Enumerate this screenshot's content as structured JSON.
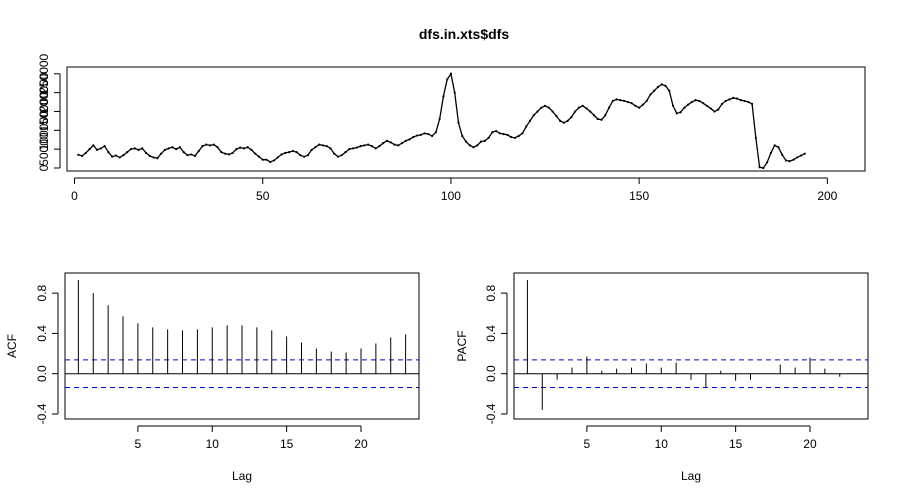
{
  "chart_data": [
    {
      "type": "line",
      "title": "dfs.in.xts$dfs",
      "xlabel": "",
      "ylabel": "",
      "xlim": [
        1,
        204
      ],
      "ylim": [
        0,
        260000
      ],
      "x_ticks": [
        "0",
        "50",
        "100",
        "150",
        "200"
      ],
      "y_ticks": [
        "0",
        "50000",
        "100000",
        "150000",
        "200000",
        "250000"
      ],
      "x_tick_values": [
        0,
        50,
        100,
        150,
        200
      ],
      "y_tick_values": [
        0,
        50000,
        100000,
        150000,
        200000,
        250000
      ],
      "grid": false,
      "series": [
        {
          "values": [
            35000,
            32000,
            40000,
            50000,
            60000,
            48000,
            52000,
            58000,
            42000,
            30000,
            33000,
            28000,
            34000,
            42000,
            50000,
            52000,
            48000,
            52000,
            40000,
            32000,
            28000,
            26000,
            38000,
            48000,
            52000,
            55000,
            50000,
            55000,
            42000,
            34000,
            36000,
            32000,
            45000,
            58000,
            62000,
            60000,
            62000,
            55000,
            42000,
            38000,
            36000,
            40000,
            50000,
            54000,
            52000,
            55000,
            48000,
            38000,
            30000,
            22000,
            22000,
            16000,
            20000,
            28000,
            36000,
            40000,
            42000,
            45000,
            42000,
            34000,
            30000,
            34000,
            48000,
            55000,
            62000,
            60000,
            58000,
            52000,
            38000,
            30000,
            34000,
            42000,
            50000,
            52000,
            54000,
            58000,
            60000,
            62000,
            58000,
            52000,
            58000,
            66000,
            72000,
            68000,
            62000,
            60000,
            66000,
            72000,
            76000,
            82000,
            86000,
            88000,
            92000,
            90000,
            85000,
            95000,
            130000,
            190000,
            235000,
            250000,
            200000,
            120000,
            85000,
            70000,
            60000,
            55000,
            60000,
            70000,
            72000,
            80000,
            95000,
            98000,
            92000,
            90000,
            88000,
            82000,
            80000,
            85000,
            92000,
            110000,
            125000,
            140000,
            150000,
            160000,
            165000,
            160000,
            150000,
            138000,
            125000,
            120000,
            125000,
            135000,
            150000,
            160000,
            165000,
            158000,
            150000,
            140000,
            130000,
            128000,
            140000,
            160000,
            178000,
            182000,
            180000,
            178000,
            175000,
            172000,
            165000,
            160000,
            168000,
            178000,
            195000,
            205000,
            215000,
            222000,
            218000,
            205000,
            165000,
            145000,
            148000,
            160000,
            168000,
            175000,
            180000,
            178000,
            172000,
            165000,
            158000,
            150000,
            155000,
            170000,
            178000,
            182000,
            186000,
            184000,
            180000,
            178000,
            175000,
            170000,
            80000,
            2000,
            0,
            15000,
            40000,
            60000,
            55000,
            35000,
            20000,
            18000,
            22000,
            28000,
            33000,
            38000
          ]
        }
      ]
    },
    {
      "type": "bar",
      "title": "",
      "xlabel": "Lag",
      "ylabel": "ACF",
      "xlim": [
        0.5,
        23.5
      ],
      "ylim": [
        -0.4,
        1.0
      ],
      "x_ticks": [
        "5",
        "10",
        "15",
        "20"
      ],
      "y_ticks": [
        "-0.4",
        "0.0",
        "0.4",
        "0.8"
      ],
      "x_tick_values": [
        5,
        10,
        15,
        20
      ],
      "y_tick_values": [
        -0.4,
        0.0,
        0.4,
        0.8
      ],
      "confidence_bound": 0.137,
      "grid": false,
      "categories": [
        1,
        2,
        3,
        4,
        5,
        6,
        7,
        8,
        9,
        10,
        11,
        12,
        13,
        14,
        15,
        16,
        17,
        18,
        19,
        20,
        21,
        22,
        23
      ],
      "values": [
        0.93,
        0.8,
        0.68,
        0.57,
        0.5,
        0.46,
        0.44,
        0.43,
        0.44,
        0.46,
        0.48,
        0.48,
        0.46,
        0.43,
        0.37,
        0.31,
        0.25,
        0.22,
        0.21,
        0.25,
        0.3,
        0.36,
        0.39
      ]
    },
    {
      "type": "bar",
      "title": "",
      "xlabel": "Lag",
      "ylabel": "PACF",
      "xlim": [
        0.5,
        23.5
      ],
      "ylim": [
        -0.4,
        1.0
      ],
      "x_ticks": [
        "5",
        "10",
        "15",
        "20"
      ],
      "y_ticks": [
        "-0.4",
        "0.0",
        "0.4",
        "0.8"
      ],
      "x_tick_values": [
        5,
        10,
        15,
        20
      ],
      "y_tick_values": [
        -0.4,
        0.0,
        0.4,
        0.8
      ],
      "confidence_bound": 0.137,
      "grid": false,
      "categories": [
        1,
        2,
        3,
        4,
        5,
        6,
        7,
        8,
        9,
        10,
        11,
        12,
        13,
        14,
        15,
        16,
        17,
        18,
        19,
        20,
        21,
        22,
        23
      ],
      "values": [
        0.93,
        -0.36,
        -0.06,
        0.06,
        0.17,
        0.03,
        0.05,
        0.06,
        0.1,
        0.06,
        0.11,
        -0.06,
        -0.14,
        0.03,
        -0.07,
        -0.06,
        0.0,
        0.09,
        0.06,
        0.16,
        0.05,
        -0.03,
        0.0
      ]
    }
  ]
}
